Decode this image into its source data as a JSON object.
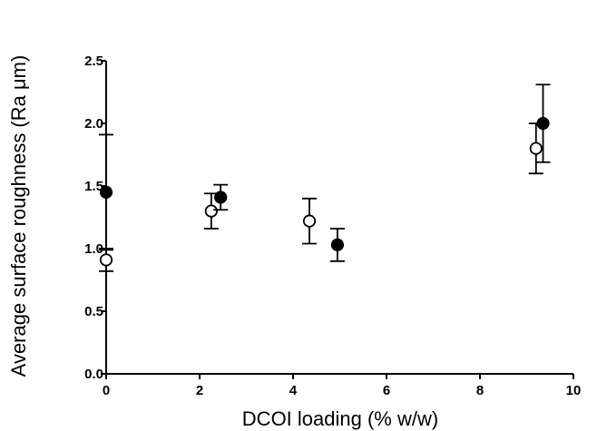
{
  "chart_data": {
    "type": "scatter",
    "xlabel": "DCOI loading (% w/w)",
    "ylabel": "Average surface roughness (Ra μm)",
    "xlim": [
      0,
      10
    ],
    "ylim": [
      0,
      2.5
    ],
    "x_ticks": [
      0,
      2,
      4,
      6,
      8,
      10
    ],
    "x_tick_labels": [
      "0",
      "2",
      "4",
      "6",
      "8",
      "10"
    ],
    "y_ticks": [
      0,
      0.5,
      1.0,
      1.5,
      2.0,
      2.5
    ],
    "y_tick_labels": [
      "0.0",
      "0.5",
      "1.0",
      "1.5",
      "2.0",
      "2.5"
    ],
    "grid": false,
    "legend": "none",
    "series": [
      {
        "marker": "open-circle",
        "color": "#000000",
        "points": [
          {
            "x": 0,
            "y": 0.91,
            "err": 0.09
          },
          {
            "x": 2.25,
            "y": 1.3,
            "err": 0.14
          },
          {
            "x": 4.35,
            "y": 1.22,
            "err": 0.18
          },
          {
            "x": 9.2,
            "y": 1.8,
            "err": 0.2
          }
        ]
      },
      {
        "marker": "filled-circle",
        "color": "#000000",
        "points": [
          {
            "x": 0,
            "y": 1.45,
            "err": 0.46
          },
          {
            "x": 2.45,
            "y": 1.41,
            "err": 0.1
          },
          {
            "x": 4.95,
            "y": 1.03,
            "err": 0.13
          },
          {
            "x": 9.35,
            "y": 2.0,
            "err": 0.31
          }
        ]
      }
    ]
  }
}
